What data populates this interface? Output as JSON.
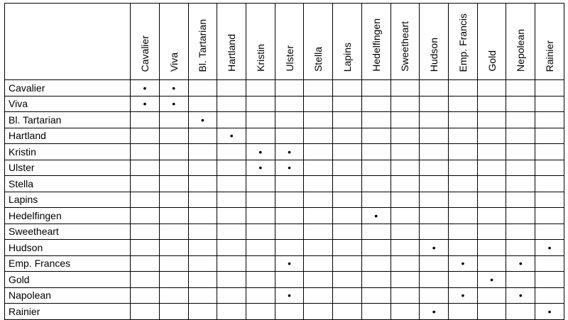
{
  "columns": [
    "Cavalier",
    "Viva",
    "Bl. Tartarian",
    "Hartland",
    "Kristin",
    "Ulster",
    "Stella",
    "Lapins",
    "Hedelfingen",
    "Sweetheart",
    "Hudson",
    "Emp. Francis",
    "Gold",
    "Nepolean",
    "Rainier"
  ],
  "rows": [
    {
      "label": "Cavalier",
      "cells": [
        "•",
        "•",
        "",
        "",
        "",
        "",
        "",
        "",
        "",
        "",
        "",
        "",
        "",
        "",
        ""
      ]
    },
    {
      "label": "Viva",
      "cells": [
        "•",
        "•",
        "",
        "",
        "",
        "",
        "",
        "",
        "",
        "",
        "",
        "",
        "",
        "",
        ""
      ]
    },
    {
      "label": "Bl. Tartarian",
      "cells": [
        "",
        "",
        "•",
        "",
        "",
        "",
        "",
        "",
        "",
        "",
        "",
        "",
        "",
        "",
        ""
      ]
    },
    {
      "label": "Hartland",
      "cells": [
        "",
        "",
        "",
        "•",
        "",
        "",
        "",
        "",
        "",
        "",
        "",
        "",
        "",
        "",
        ""
      ]
    },
    {
      "label": "Kristin",
      "cells": [
        "",
        "",
        "",
        "",
        "•",
        "•",
        "",
        "",
        "",
        "",
        "",
        "",
        "",
        "",
        ""
      ]
    },
    {
      "label": "Ulster",
      "cells": [
        "",
        "",
        "",
        "",
        "•",
        "•",
        "",
        "",
        "",
        "",
        "",
        "",
        "",
        "",
        ""
      ]
    },
    {
      "label": "Stella",
      "cells": [
        "",
        "",
        "",
        "",
        "",
        "",
        "",
        "",
        "",
        "",
        "",
        "",
        "",
        "",
        ""
      ]
    },
    {
      "label": "Lapins",
      "cells": [
        "",
        "",
        "",
        "",
        "",
        "",
        "",
        "",
        "",
        "",
        "",
        "",
        "",
        "",
        ""
      ]
    },
    {
      "label": "Hedelfingen",
      "cells": [
        "",
        "",
        "",
        "",
        "",
        "",
        "",
        "",
        "•",
        "",
        "",
        "",
        "",
        "",
        ""
      ]
    },
    {
      "label": "Sweetheart",
      "cells": [
        "",
        "",
        "",
        "",
        "",
        "",
        "",
        "",
        "",
        "",
        "",
        "",
        "",
        "",
        ""
      ]
    },
    {
      "label": "Hudson",
      "cells": [
        "",
        "",
        "",
        "",
        "",
        "",
        "",
        "",
        "",
        "",
        "•",
        "",
        "",
        "",
        "•"
      ]
    },
    {
      "label": "Emp. Frances",
      "cells": [
        "",
        "",
        "",
        "",
        "",
        "•",
        "",
        "",
        "",
        "",
        "",
        "•",
        "",
        "•",
        ""
      ]
    },
    {
      "label": "Gold",
      "cells": [
        "",
        "",
        "",
        "",
        "",
        "",
        "",
        "",
        "",
        "",
        "",
        "",
        "•",
        "",
        ""
      ]
    },
    {
      "label": "Napolean",
      "cells": [
        "",
        "",
        "",
        "",
        "",
        "•",
        "",
        "",
        "",
        "",
        "",
        "•",
        "",
        "•",
        ""
      ]
    },
    {
      "label": "Rainier",
      "cells": [
        "",
        "",
        "",
        "",
        "",
        "",
        "",
        "",
        "",
        "",
        "•",
        "",
        "",
        "",
        "•"
      ]
    }
  ]
}
